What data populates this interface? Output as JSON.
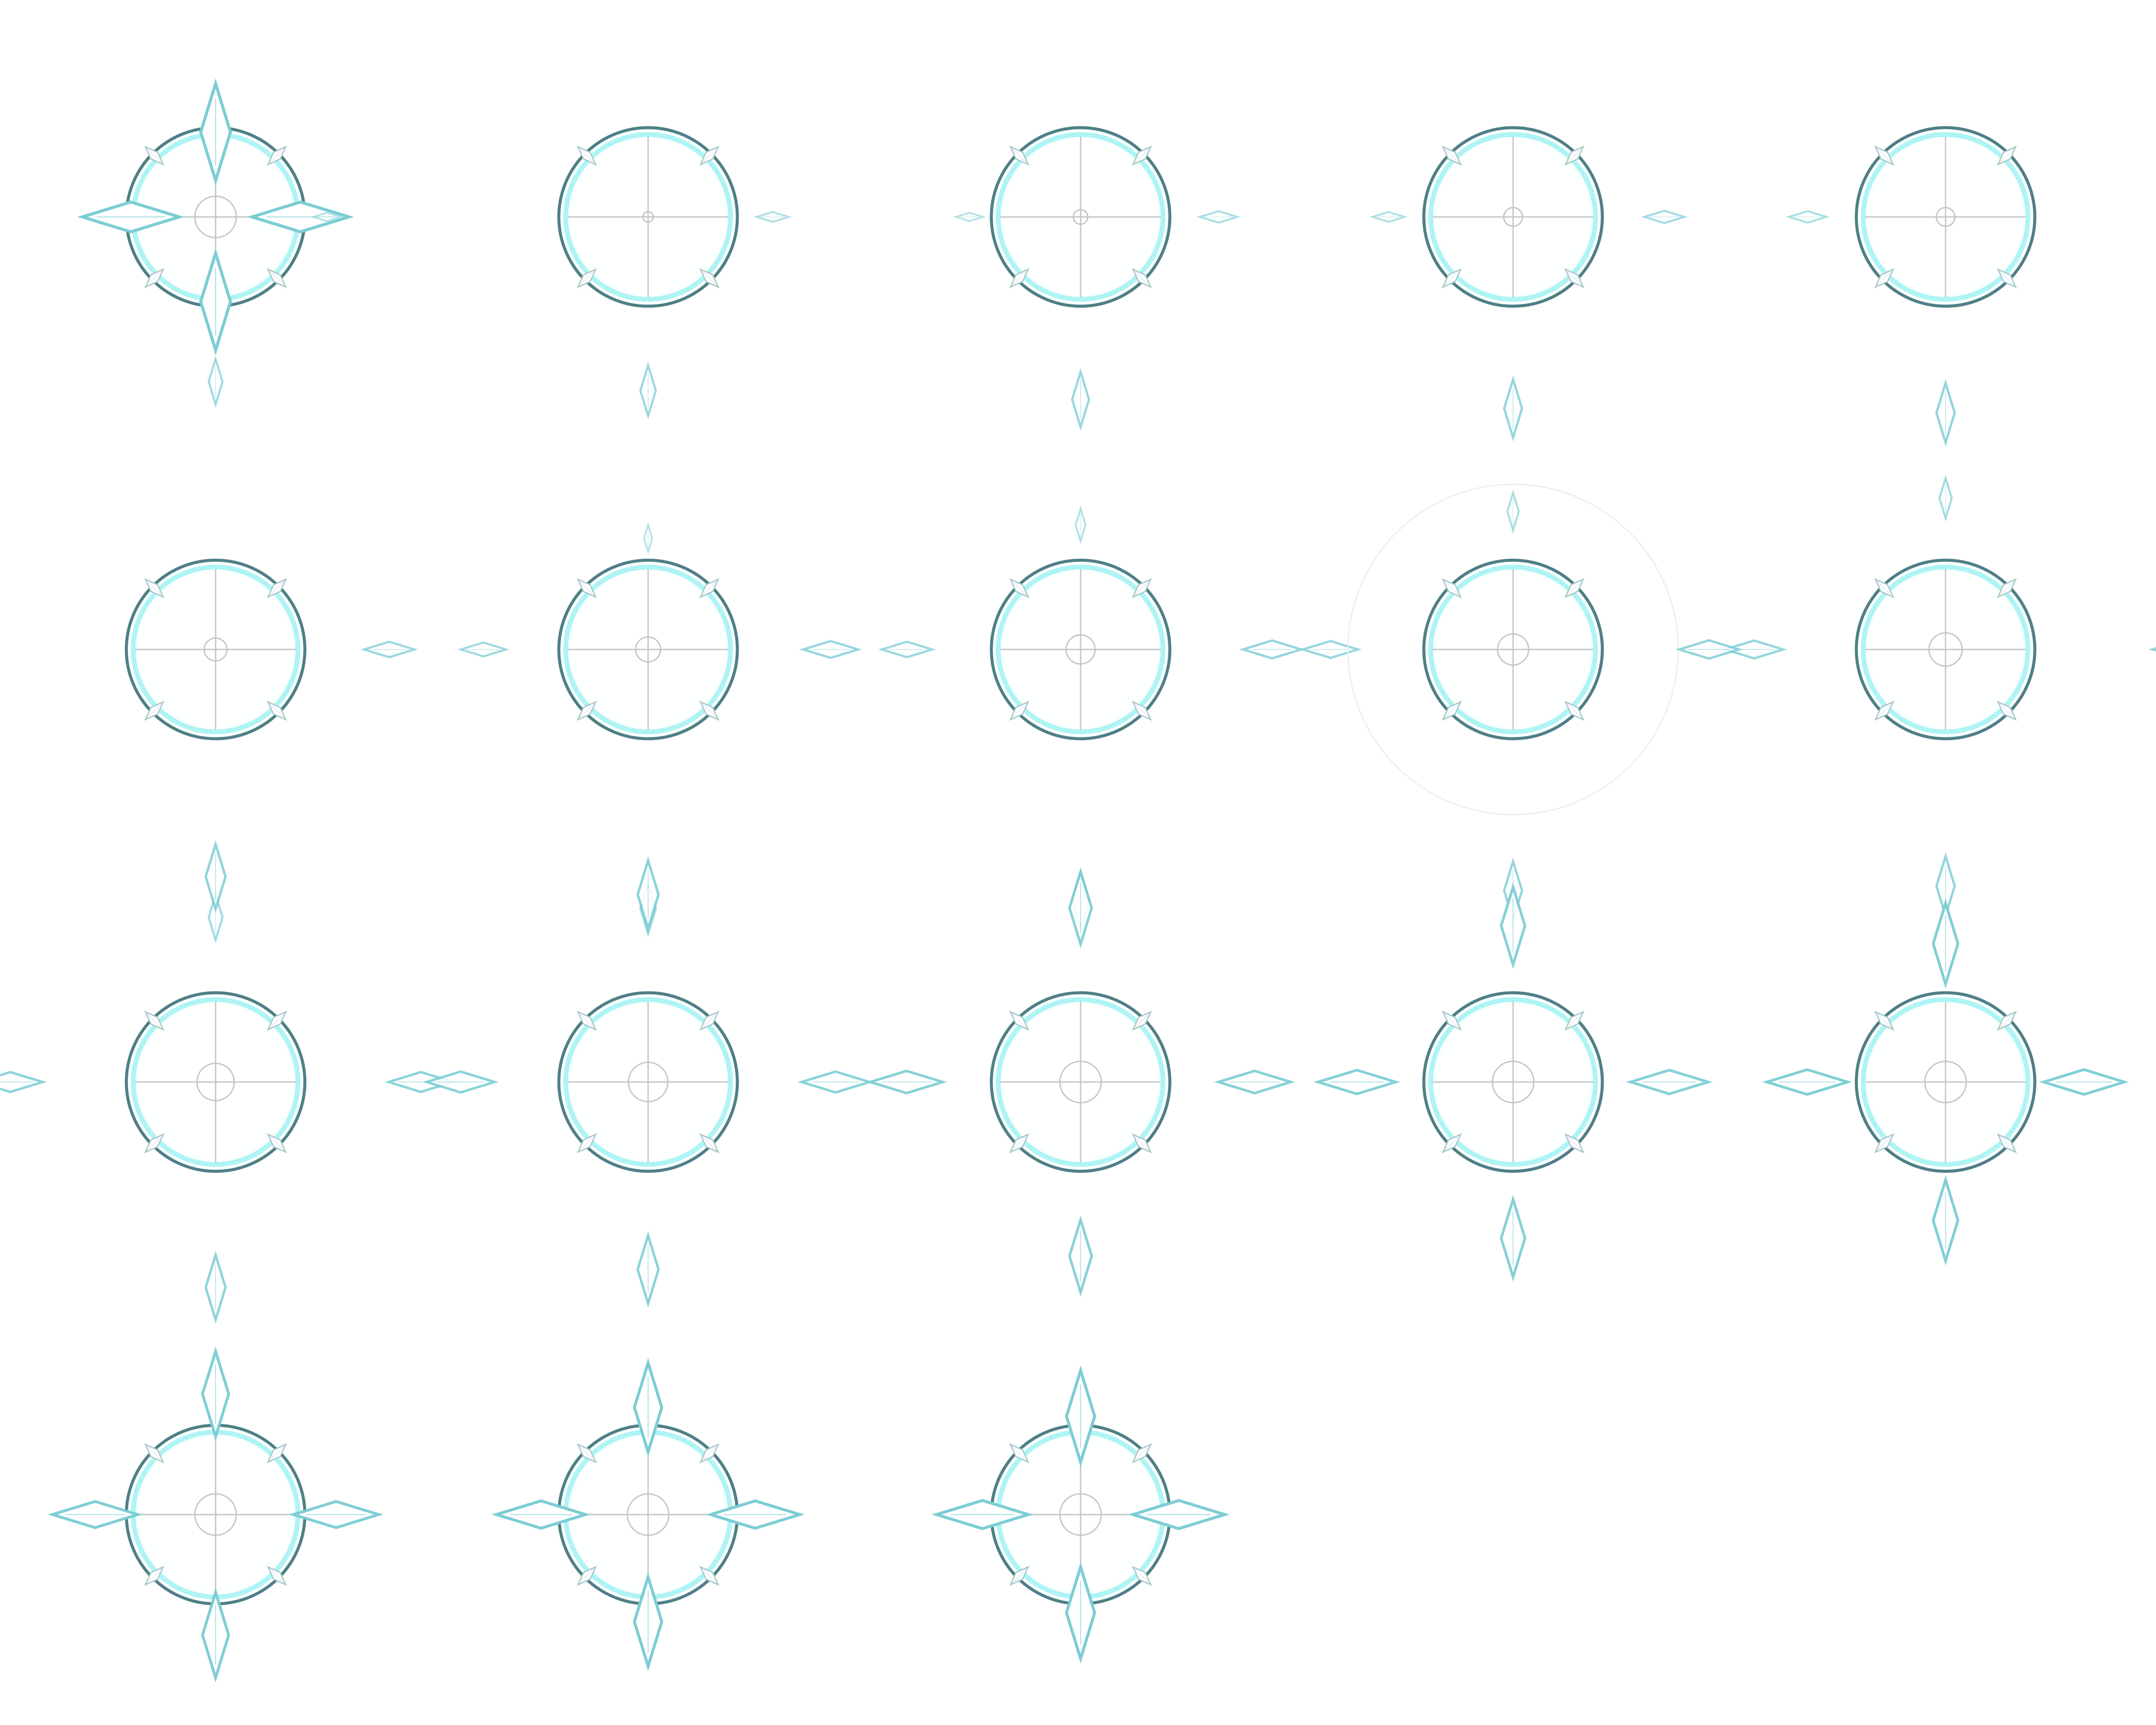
{
  "sprite_sheet": {
    "grid": {
      "columns": 5,
      "rows": 4
    },
    "frame_count": 18,
    "colors": {
      "background": "#ffffff",
      "ring_outer": "#4f7f86",
      "ring_inner": "#aef4f4",
      "ring_fill": "#e6fbfb",
      "diamond_stroke": "#7ccdd4",
      "diamond_fill": "#ffffff",
      "diamond_shadow": "#4d8f97",
      "small_diamond_stroke": "#a9c8cc",
      "crosshair": "#c4c4c4",
      "halo": "#eeeeee"
    },
    "icons": [
      "crosshair-reticle-icon",
      "diamond-marker-icon",
      "small-diamond-marker-icon",
      "halo-ring-icon"
    ],
    "frames": [
      {
        "cardinal_distance": 0.95,
        "cardinal_scale": 1.5,
        "cardinal_opacity": 1.0,
        "center_scale": 1.0,
        "halo": false
      },
      {
        "cardinal_distance": 3.6,
        "cardinal_scale": 0.42,
        "cardinal_opacity": 0.55,
        "center_scale": 0.25,
        "halo": false
      },
      {
        "cardinal_distance": 3.45,
        "cardinal_scale": 0.5,
        "cardinal_opacity": 0.6,
        "center_scale": 0.35,
        "halo": false
      },
      {
        "cardinal_distance": 3.3,
        "cardinal_scale": 0.58,
        "cardinal_opacity": 0.65,
        "center_scale": 0.45,
        "halo": false
      },
      {
        "cardinal_distance": 3.15,
        "cardinal_scale": 0.62,
        "cardinal_opacity": 0.7,
        "center_scale": 0.45,
        "halo": false
      },
      {
        "cardinal_distance": 3.0,
        "cardinal_scale": 0.7,
        "cardinal_opacity": 0.72,
        "center_scale": 0.55,
        "halo": false
      },
      {
        "cardinal_distance": 2.9,
        "cardinal_scale": 0.78,
        "cardinal_opacity": 0.75,
        "center_scale": 0.6,
        "halo": false
      },
      {
        "cardinal_distance": 2.8,
        "cardinal_scale": 0.85,
        "cardinal_opacity": 0.78,
        "center_scale": 0.7,
        "halo": false
      },
      {
        "cardinal_distance": 2.7,
        "cardinal_scale": 0.9,
        "cardinal_opacity": 0.8,
        "center_scale": 0.75,
        "halo": true
      },
      {
        "cardinal_distance": 2.65,
        "cardinal_scale": 0.92,
        "cardinal_opacity": 0.82,
        "center_scale": 0.8,
        "halo": false
      },
      {
        "cardinal_distance": 2.3,
        "cardinal_scale": 1.0,
        "cardinal_opacity": 0.85,
        "center_scale": 0.9,
        "halo": false
      },
      {
        "cardinal_distance": 2.1,
        "cardinal_scale": 1.05,
        "cardinal_opacity": 0.88,
        "center_scale": 0.95,
        "halo": false
      },
      {
        "cardinal_distance": 1.95,
        "cardinal_scale": 1.12,
        "cardinal_opacity": 0.9,
        "center_scale": 1.0,
        "halo": false
      },
      {
        "cardinal_distance": 1.75,
        "cardinal_scale": 1.2,
        "cardinal_opacity": 0.92,
        "center_scale": 1.0,
        "halo": false
      },
      {
        "cardinal_distance": 1.55,
        "cardinal_scale": 1.25,
        "cardinal_opacity": 0.95,
        "center_scale": 1.0,
        "halo": false
      },
      {
        "cardinal_distance": 1.35,
        "cardinal_scale": 1.32,
        "cardinal_opacity": 0.97,
        "center_scale": 1.0,
        "halo": false
      },
      {
        "cardinal_distance": 1.2,
        "cardinal_scale": 1.38,
        "cardinal_opacity": 1.0,
        "center_scale": 1.0,
        "halo": false
      },
      {
        "cardinal_distance": 1.1,
        "cardinal_scale": 1.42,
        "cardinal_opacity": 1.0,
        "center_scale": 1.0,
        "halo": false
      }
    ]
  }
}
